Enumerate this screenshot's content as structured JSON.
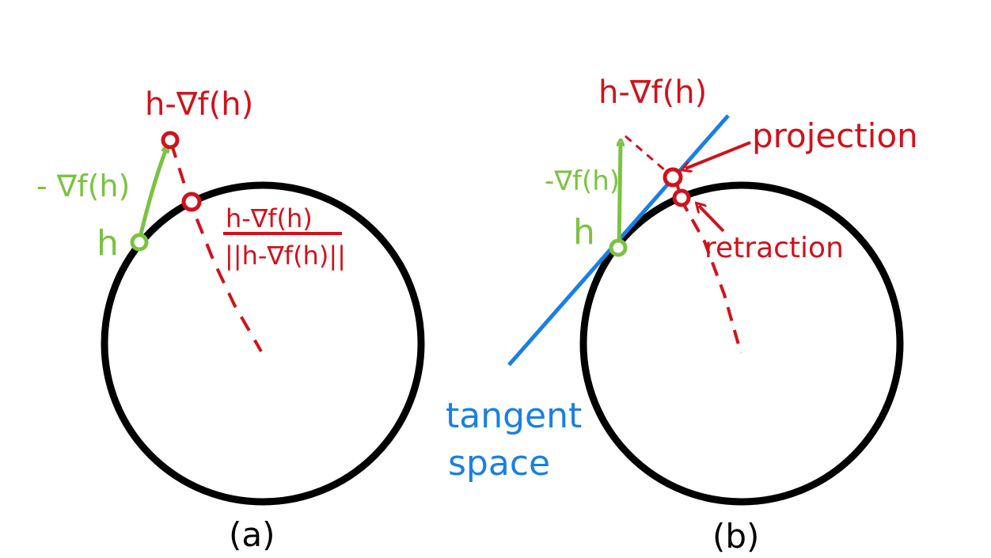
{
  "colors": {
    "circle": "#000000",
    "green": "#7cc242",
    "red": "#d0121b",
    "blue": "#1a7fe3"
  },
  "panel_a": {
    "caption": "(a)",
    "label_h": "h",
    "label_neg_grad": "- ∇f(h)",
    "label_step_point": "h-∇f(h)",
    "label_fraction_numerator": "h-∇f(h)",
    "label_fraction_denominator": "||h-∇f(h)||"
  },
  "panel_b": {
    "caption": "(b)",
    "label_h": "h",
    "label_neg_grad": "-∇f(h)",
    "label_step_point": "h-∇f(h)",
    "label_projection": "projection",
    "label_retraction": "retraction",
    "label_tangent_line1": "tangent",
    "label_tangent_line2": "space"
  }
}
